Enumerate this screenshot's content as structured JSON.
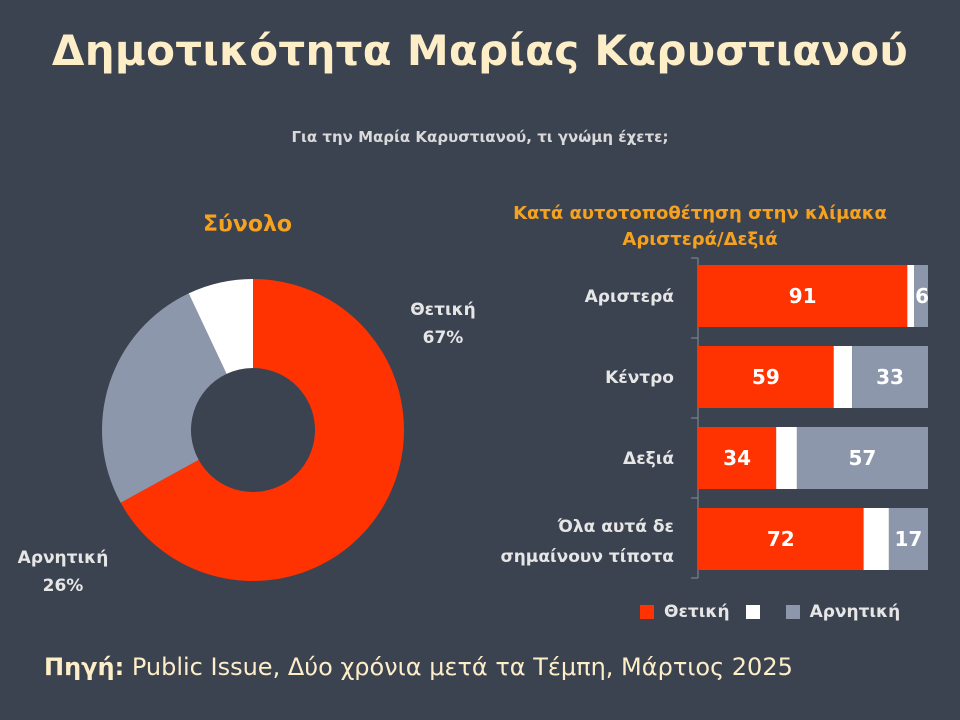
{
  "title": "Δημοτικότητα Μαρίας Καρυστιανού",
  "subtitle": "Για την Μαρία Καρυστιανού, τι γνώμη έχετε;",
  "colors": {
    "positive": "#fe3301",
    "neutral": "#ffffff",
    "negative": "#8c97ab",
    "background": "#3b4250",
    "accent": "#f6a21e"
  },
  "chart_data": [
    {
      "type": "pie",
      "style": "donut",
      "title": "Σύνολο",
      "slices": [
        {
          "name": "Θετική",
          "value": 67,
          "label": "Θετική",
          "pct_label": "67%",
          "color": "#fe3301"
        },
        {
          "name": "Αρνητική",
          "value": 26,
          "label": "Αρνητική",
          "pct_label": "26%",
          "color": "#8c97ab"
        },
        {
          "name": "",
          "value": 7,
          "label": "",
          "pct_label": "",
          "color": "#ffffff"
        }
      ]
    },
    {
      "type": "bar",
      "orientation": "horizontal",
      "stacked": true,
      "title": "Κατά αυτοτοποθέτηση στην κλίμακα Αριστερά/Δεξιά",
      "categories": [
        [
          "Αριστερά"
        ],
        [
          "Κέντρο"
        ],
        [
          "Δεξιά"
        ],
        [
          "Όλα αυτά δε",
          "σημαίνουν τίποτα"
        ]
      ],
      "series": [
        {
          "name": "Θετική",
          "color": "#fe3301",
          "values": [
            91,
            59,
            34,
            72
          ],
          "labels": [
            "91",
            "59",
            "34",
            "72"
          ]
        },
        {
          "name": "",
          "color": "#ffffff",
          "values": [
            3,
            8,
            9,
            11
          ],
          "labels": [
            "",
            "",
            "",
            ""
          ]
        },
        {
          "name": "Αρνητική",
          "color": "#8c97ab",
          "values": [
            6,
            33,
            57,
            17
          ],
          "labels": [
            "6",
            "33",
            "57",
            "17"
          ]
        }
      ],
      "xlim": [
        0,
        100
      ],
      "legend_position": "bottom-right"
    }
  ],
  "legend": {
    "positive": "Θετική",
    "negative": "Αρνητική"
  },
  "source": {
    "label": "Πηγή:",
    "text": "Public Issue, Δύο χρόνια μετά τα Τέμπη, Μάρτιος 2025"
  }
}
